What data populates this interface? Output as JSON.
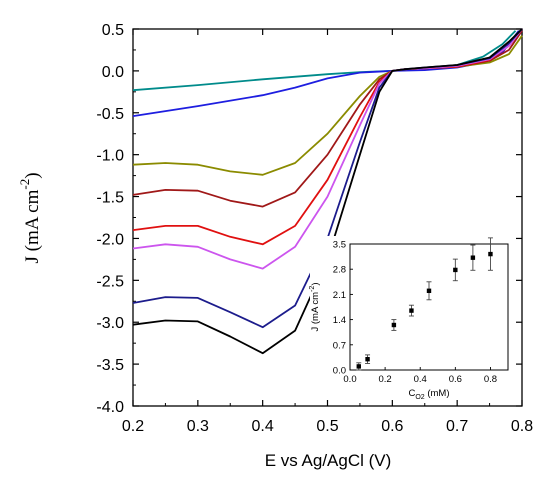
{
  "chart_data": [
    {
      "type": "line",
      "title": "",
      "xlabel": "E vs Ag/AgCl (V)",
      "ylabel": {
        "main": "J (mA cm",
        "sup": "-2",
        "close": ")"
      },
      "xlim": [
        0.2,
        0.8
      ],
      "ylim": [
        -4.0,
        0.5
      ],
      "xticks": [
        "0.2",
        "0.3",
        "0.4",
        "0.5",
        "0.6",
        "0.7",
        "0.8"
      ],
      "yticks": [
        "0.5",
        "0.0",
        "-0.5",
        "-1.0",
        "-1.5",
        "-2.0",
        "-2.5",
        "-3.0",
        "-3.5",
        "-4.0"
      ],
      "grid": false,
      "series": [
        {
          "color": "#008B8B",
          "x": [
            0.2,
            0.3,
            0.4,
            0.5,
            0.55,
            0.6,
            0.65,
            0.7,
            0.74,
            0.77,
            0.79
          ],
          "y": [
            -0.23,
            -0.17,
            -0.1,
            -0.04,
            -0.015,
            0.0,
            0.02,
            0.07,
            0.17,
            0.32,
            0.48
          ]
        },
        {
          "color": "#1E1EE0",
          "x": [
            0.2,
            0.3,
            0.4,
            0.45,
            0.5,
            0.55,
            0.6,
            0.65,
            0.7,
            0.74,
            0.77,
            0.795
          ],
          "y": [
            -0.54,
            -0.42,
            -0.29,
            -0.2,
            -0.09,
            -0.02,
            0.0,
            0.01,
            0.04,
            0.1,
            0.22,
            0.48
          ]
        },
        {
          "color": "#8B8B00",
          "x": [
            0.2,
            0.25,
            0.3,
            0.35,
            0.4,
            0.45,
            0.5,
            0.55,
            0.58,
            0.6,
            0.62,
            0.65,
            0.7,
            0.75,
            0.78,
            0.8
          ],
          "y": [
            -1.12,
            -1.1,
            -1.12,
            -1.2,
            -1.24,
            -1.1,
            -0.75,
            -0.3,
            -0.07,
            0.0,
            0.02,
            0.03,
            0.05,
            0.1,
            0.2,
            0.42
          ]
        },
        {
          "color": "#A01818",
          "x": [
            0.2,
            0.25,
            0.3,
            0.35,
            0.4,
            0.45,
            0.5,
            0.55,
            0.58,
            0.6,
            0.62,
            0.65,
            0.7,
            0.75,
            0.78,
            0.8
          ],
          "y": [
            -1.48,
            -1.42,
            -1.43,
            -1.55,
            -1.62,
            -1.45,
            -1.0,
            -0.4,
            -0.1,
            0.0,
            0.02,
            0.03,
            0.05,
            0.12,
            0.25,
            0.48
          ]
        },
        {
          "color": "#E01010",
          "x": [
            0.2,
            0.25,
            0.3,
            0.35,
            0.4,
            0.45,
            0.5,
            0.55,
            0.58,
            0.6,
            0.62,
            0.65,
            0.7,
            0.75,
            0.78,
            0.8
          ],
          "y": [
            -1.9,
            -1.85,
            -1.85,
            -1.98,
            -2.07,
            -1.85,
            -1.3,
            -0.55,
            -0.13,
            0.0,
            0.02,
            0.03,
            0.05,
            0.13,
            0.3,
            0.5
          ]
        },
        {
          "color": "#CC55EE",
          "x": [
            0.2,
            0.25,
            0.3,
            0.35,
            0.4,
            0.45,
            0.5,
            0.55,
            0.58,
            0.6,
            0.62,
            0.65,
            0.7,
            0.75,
            0.78,
            0.8
          ],
          "y": [
            -2.12,
            -2.07,
            -2.1,
            -2.25,
            -2.36,
            -2.1,
            -1.5,
            -0.65,
            -0.15,
            0.0,
            0.02,
            0.03,
            0.06,
            0.14,
            0.3,
            0.5
          ]
        },
        {
          "color": "#1C1C8C",
          "x": [
            0.2,
            0.25,
            0.3,
            0.35,
            0.4,
            0.45,
            0.5,
            0.55,
            0.58,
            0.6,
            0.62,
            0.65,
            0.7,
            0.75,
            0.78,
            0.8
          ],
          "y": [
            -2.77,
            -2.7,
            -2.71,
            -2.88,
            -3.06,
            -2.8,
            -2.0,
            -0.85,
            -0.2,
            0.0,
            0.02,
            0.04,
            0.07,
            0.15,
            0.33,
            0.5
          ]
        },
        {
          "color": "#000000",
          "x": [
            0.2,
            0.25,
            0.3,
            0.35,
            0.4,
            0.45,
            0.5,
            0.55,
            0.58,
            0.6,
            0.62,
            0.65,
            0.7,
            0.75,
            0.78,
            0.8
          ],
          "y": [
            -3.03,
            -2.98,
            -2.99,
            -3.17,
            -3.37,
            -3.1,
            -2.25,
            -1.0,
            -0.25,
            0.0,
            0.02,
            0.04,
            0.07,
            0.16,
            0.35,
            0.5
          ]
        }
      ]
    },
    {
      "type": "scatter",
      "title": "",
      "xlabel": {
        "main": "C",
        "sub": "O2",
        "rest": " (mM)"
      },
      "ylabel": {
        "main": "J (mA cm",
        "sup": "-2",
        "close": ")"
      },
      "xlim": [
        0.0,
        0.9
      ],
      "ylim": [
        0.0,
        3.5
      ],
      "xticks": [
        "0.0",
        "0.2",
        "0.4",
        "0.6",
        "0.8"
      ],
      "yticks": [
        "0.0",
        "0.7",
        "1.4",
        "2.1",
        "2.8",
        "3.5"
      ],
      "points": [
        {
          "x": 0.05,
          "y": 0.1,
          "err": 0.1
        },
        {
          "x": 0.1,
          "y": 0.3,
          "err": 0.12
        },
        {
          "x": 0.25,
          "y": 1.25,
          "err": 0.15
        },
        {
          "x": 0.35,
          "y": 1.65,
          "err": 0.15
        },
        {
          "x": 0.45,
          "y": 2.2,
          "err": 0.25
        },
        {
          "x": 0.6,
          "y": 2.78,
          "err": 0.3
        },
        {
          "x": 0.7,
          "y": 3.12,
          "err": 0.35
        },
        {
          "x": 0.8,
          "y": 3.22,
          "err": 0.45
        }
      ]
    }
  ]
}
